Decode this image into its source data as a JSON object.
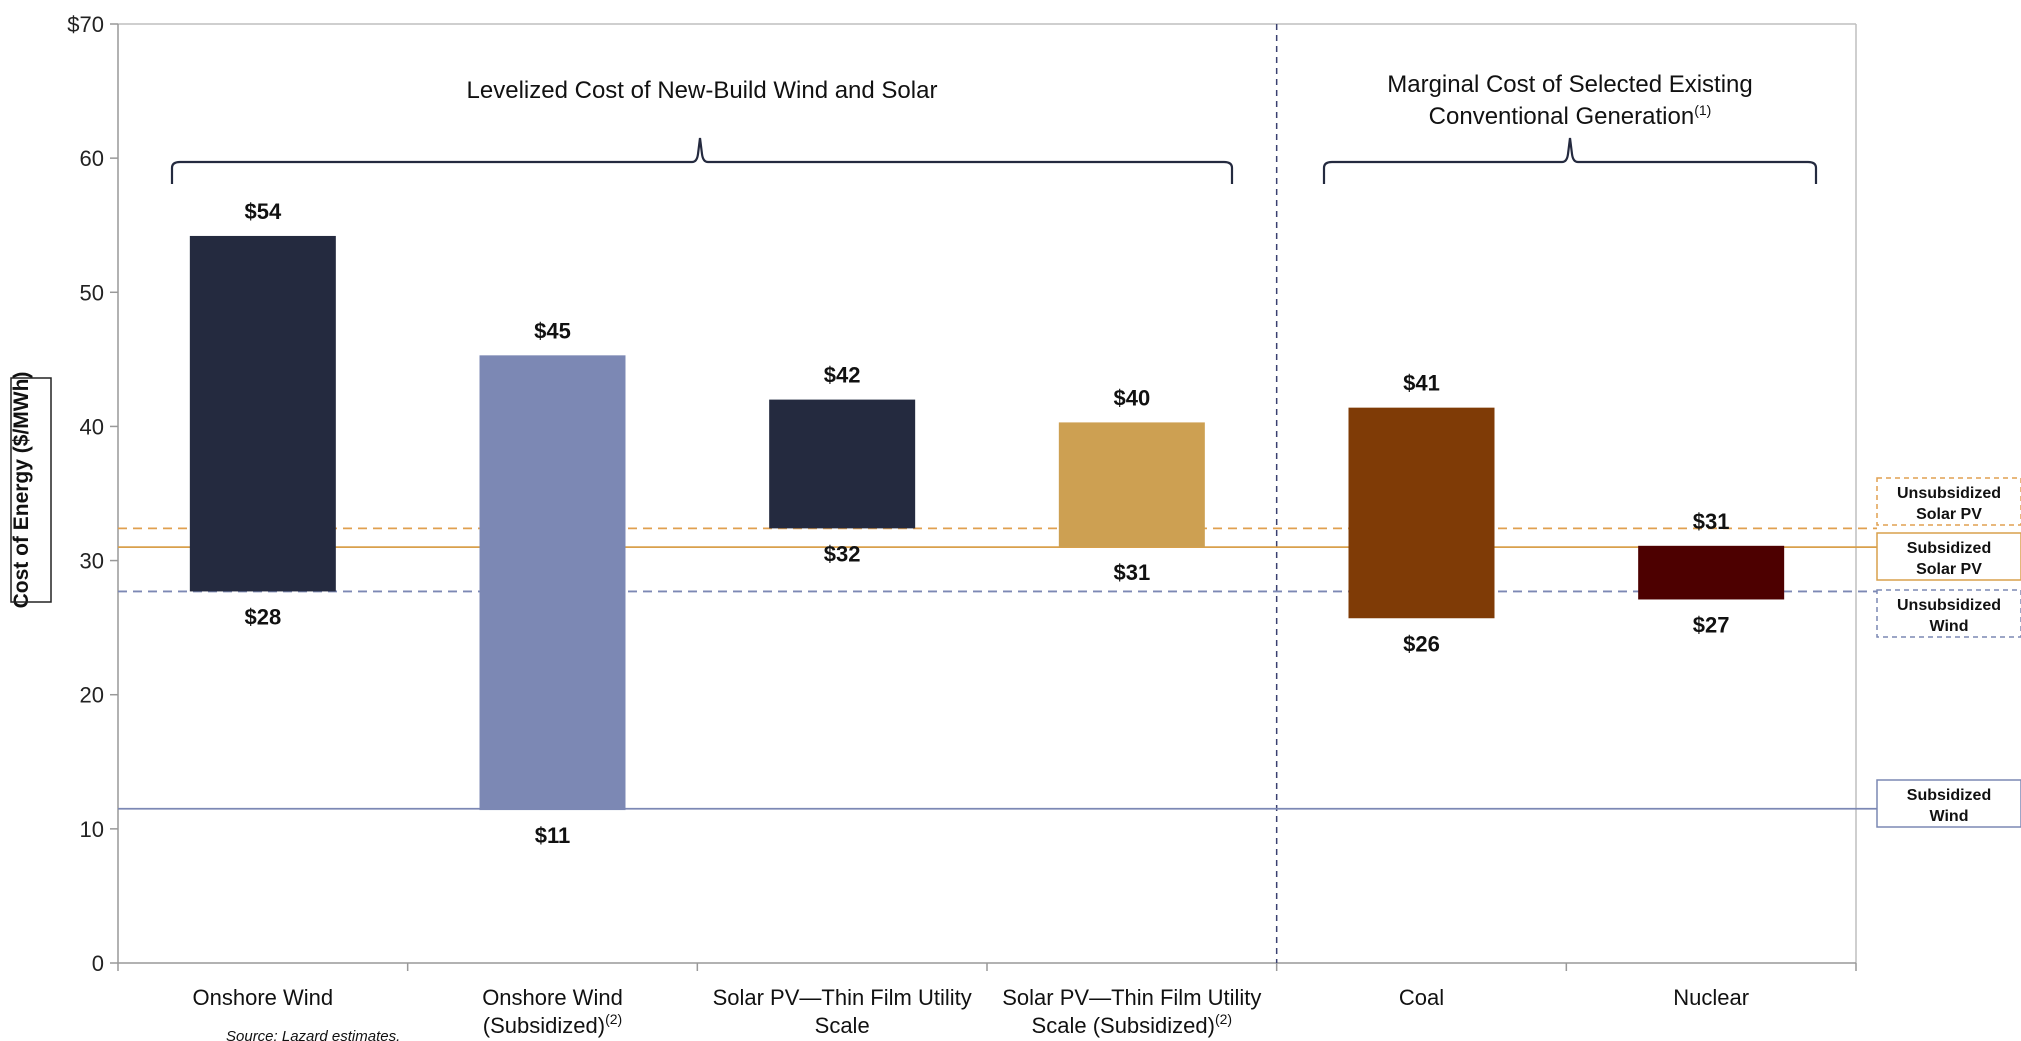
{
  "chart_data": {
    "type": "bar",
    "subtype": "floating-range",
    "ylabel": "Cost of Energy ($/MWh)",
    "ylim": [
      0,
      70
    ],
    "yticks": [
      "0",
      "10",
      "20",
      "30",
      "40",
      "50",
      "60",
      "$70"
    ],
    "categories": [
      {
        "lines": [
          "Onshore Wind"
        ],
        "note": ""
      },
      {
        "lines": [
          "Onshore Wind",
          "(Subsidized)"
        ],
        "note": "(2)"
      },
      {
        "lines": [
          "Solar PV—Thin Film Utility",
          "Scale"
        ],
        "note": ""
      },
      {
        "lines": [
          "Solar PV—Thin Film Utility",
          "Scale (Subsidized)"
        ],
        "note": "(2)"
      },
      {
        "lines": [
          "Coal"
        ],
        "note": ""
      },
      {
        "lines": [
          "Nuclear"
        ],
        "note": ""
      }
    ],
    "bars": [
      {
        "low": 27.7,
        "high": 54.2,
        "low_label": "$28",
        "high_label": "$54",
        "color": "#242a3f"
      },
      {
        "low": 11.4,
        "high": 45.3,
        "low_label": "$11",
        "high_label": "$45",
        "color": "#7c88b4"
      },
      {
        "low": 32.4,
        "high": 42.0,
        "low_label": "$32",
        "high_label": "$42",
        "color": "#242a3f"
      },
      {
        "low": 31.0,
        "high": 40.3,
        "low_label": "$31",
        "high_label": "$40",
        "color": "#cda052"
      },
      {
        "low": 25.7,
        "high": 41.4,
        "low_label": "$26",
        "high_label": "$41",
        "color": "#7f3b06"
      },
      {
        "low": 27.1,
        "high": 31.1,
        "low_label": "$27",
        "high_label": "$31",
        "color": "#4d0000"
      }
    ],
    "reference_lines": [
      {
        "label": [
          "Unsubsidized",
          "Solar PV"
        ],
        "value": 32.4,
        "style": "dashed",
        "color": "#e0a050"
      },
      {
        "label": [
          "Subsidized",
          "Solar PV"
        ],
        "value": 31.0,
        "style": "solid",
        "color": "#d9a04c"
      },
      {
        "label": [
          "Unsubsidized",
          "Wind"
        ],
        "value": 27.7,
        "style": "dashed",
        "color": "#7c88b4"
      },
      {
        "label": [
          "Subsidized",
          "Wind"
        ],
        "value": 11.5,
        "style": "solid",
        "color": "#7c88b4"
      }
    ],
    "groups": [
      {
        "lines": [
          "Levelized Cost of New-Build Wind and Solar"
        ],
        "note": ""
      },
      {
        "lines": [
          "Marginal Cost of Selected Existing",
          "Conventional Generation"
        ],
        "note": "(1)"
      }
    ],
    "source": "Source:  Lazard estimates.",
    "grid": false
  }
}
